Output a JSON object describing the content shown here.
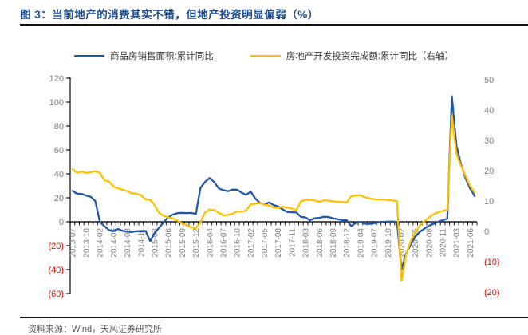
{
  "title": "图 3：当前地产的消费其实不错，但地产投资明显偏弱（%）",
  "source": "资料来源：Wind，天风证券研究所",
  "colors": {
    "title": "#1F4E92",
    "negative": "#FF0000",
    "axis_text": "#7F7F7F",
    "axis_line": "#1A1A1A",
    "legend_text": "#3A3A3A"
  },
  "chart_data": {
    "type": "line",
    "grid": false,
    "legend_position": "top",
    "x_label_every": 3,
    "x": [
      "2013-07",
      "2013-08",
      "2013-09",
      "2013-10",
      "2013-11",
      "2013-12",
      "2014-02",
      "2014-03",
      "2014-04",
      "2014-05",
      "2014-06",
      "2014-07",
      "2014-08",
      "2014-09",
      "2014-10",
      "2014-11",
      "2014-12",
      "2015-02",
      "2015-03",
      "2015-04",
      "2015-05",
      "2015-06",
      "2015-07",
      "2015-08",
      "2015-09",
      "2015-10",
      "2015-11",
      "2015-12",
      "2016-02",
      "2016-03",
      "2016-04",
      "2016-05",
      "2016-06",
      "2016-07",
      "2016-08",
      "2016-09",
      "2016-10",
      "2016-11",
      "2016-12",
      "2017-02",
      "2017-03",
      "2017-04",
      "2017-05",
      "2017-06",
      "2017-07",
      "2017-08",
      "2017-09",
      "2017-10",
      "2017-11",
      "2017-12",
      "2018-02",
      "2018-03",
      "2018-04",
      "2018-05",
      "2018-06",
      "2018-07",
      "2018-08",
      "2018-09",
      "2018-10",
      "2018-11",
      "2018-12",
      "2019-02",
      "2019-03",
      "2019-04",
      "2019-05",
      "2019-06",
      "2019-07",
      "2019-08",
      "2019-09",
      "2019-10",
      "2019-11",
      "2019-12",
      "2020-02",
      "2020-03",
      "2020-04",
      "2020-05",
      "2020-06",
      "2020-07",
      "2020-08",
      "2020-09",
      "2020-10",
      "2020-11",
      "2020-12",
      "2021-02",
      "2021-03",
      "2021-04",
      "2021-05",
      "2021-06",
      "2021-07"
    ],
    "left_axis": {
      "min": -60,
      "max": 120,
      "step": 20,
      "tick_labels": [
        "120",
        "100",
        "80",
        "60",
        "40",
        "20",
        "0",
        "(20)",
        "(40)",
        "(60)"
      ]
    },
    "right_axis": {
      "min": -20,
      "max": 50,
      "step": 10,
      "tick_labels": [
        "50",
        "40",
        "30",
        "20",
        "10",
        "0",
        "(10)",
        "(20)"
      ]
    },
    "series": [
      {
        "name": "商品房销售面积:累计同比",
        "axis": "left",
        "color": "#2158A5",
        "values": [
          25.8,
          23.4,
          23.3,
          21.8,
          20.8,
          17.3,
          -0.1,
          -3.8,
          -6.9,
          -7.8,
          -6.0,
          -7.6,
          -8.3,
          -8.6,
          -7.8,
          -8.2,
          -7.6,
          -16.3,
          -9.2,
          -4.8,
          -0.2,
          3.9,
          6.1,
          7.2,
          7.5,
          7.2,
          7.4,
          6.5,
          28.2,
          33.1,
          36.5,
          33.2,
          27.9,
          26.4,
          25.5,
          26.9,
          26.8,
          24.3,
          22.5,
          25.1,
          19.5,
          15.7,
          14.3,
          16.1,
          14.0,
          12.7,
          10.3,
          8.2,
          7.9,
          7.7,
          4.1,
          3.6,
          1.3,
          2.9,
          3.3,
          4.2,
          4.0,
          2.9,
          2.2,
          1.4,
          1.3,
          -3.6,
          -0.9,
          -0.3,
          -1.6,
          -1.8,
          -1.3,
          -0.6,
          -0.1,
          0.1,
          0.2,
          -0.1,
          -39.9,
          -26.3,
          -19.3,
          -12.3,
          -8.4,
          -5.8,
          -3.3,
          -1.8,
          0.0,
          1.3,
          2.6,
          104.9,
          63.8,
          48.1,
          36.3,
          27.7,
          21.5
        ]
      },
      {
        "name": "房地产开发投资完成额:累计同比（右轴）",
        "axis": "right",
        "color": "#FFC000",
        "values": [
          20.5,
          19.3,
          19.7,
          19.2,
          19.5,
          19.8,
          19.3,
          16.8,
          16.4,
          14.7,
          14.1,
          13.7,
          13.2,
          12.5,
          12.4,
          11.9,
          10.5,
          10.4,
          8.5,
          6.0,
          5.1,
          4.6,
          4.3,
          3.5,
          2.6,
          2.0,
          1.3,
          1.0,
          3.0,
          6.2,
          7.2,
          7.0,
          6.1,
          5.3,
          5.4,
          5.8,
          6.6,
          6.5,
          6.9,
          8.9,
          9.1,
          9.3,
          8.8,
          8.5,
          7.9,
          7.8,
          8.1,
          7.8,
          7.5,
          7.0,
          9.9,
          10.4,
          10.3,
          10.2,
          9.7,
          10.2,
          10.1,
          9.9,
          9.7,
          9.7,
          9.5,
          11.6,
          11.8,
          11.9,
          11.2,
          10.9,
          10.6,
          10.5,
          10.5,
          10.3,
          10.2,
          9.9,
          -16.3,
          -7.7,
          -3.3,
          -0.3,
          1.9,
          3.4,
          4.6,
          5.6,
          6.3,
          6.8,
          7.0,
          38.3,
          25.6,
          21.6,
          18.3,
          15.0,
          12.7
        ]
      }
    ]
  }
}
